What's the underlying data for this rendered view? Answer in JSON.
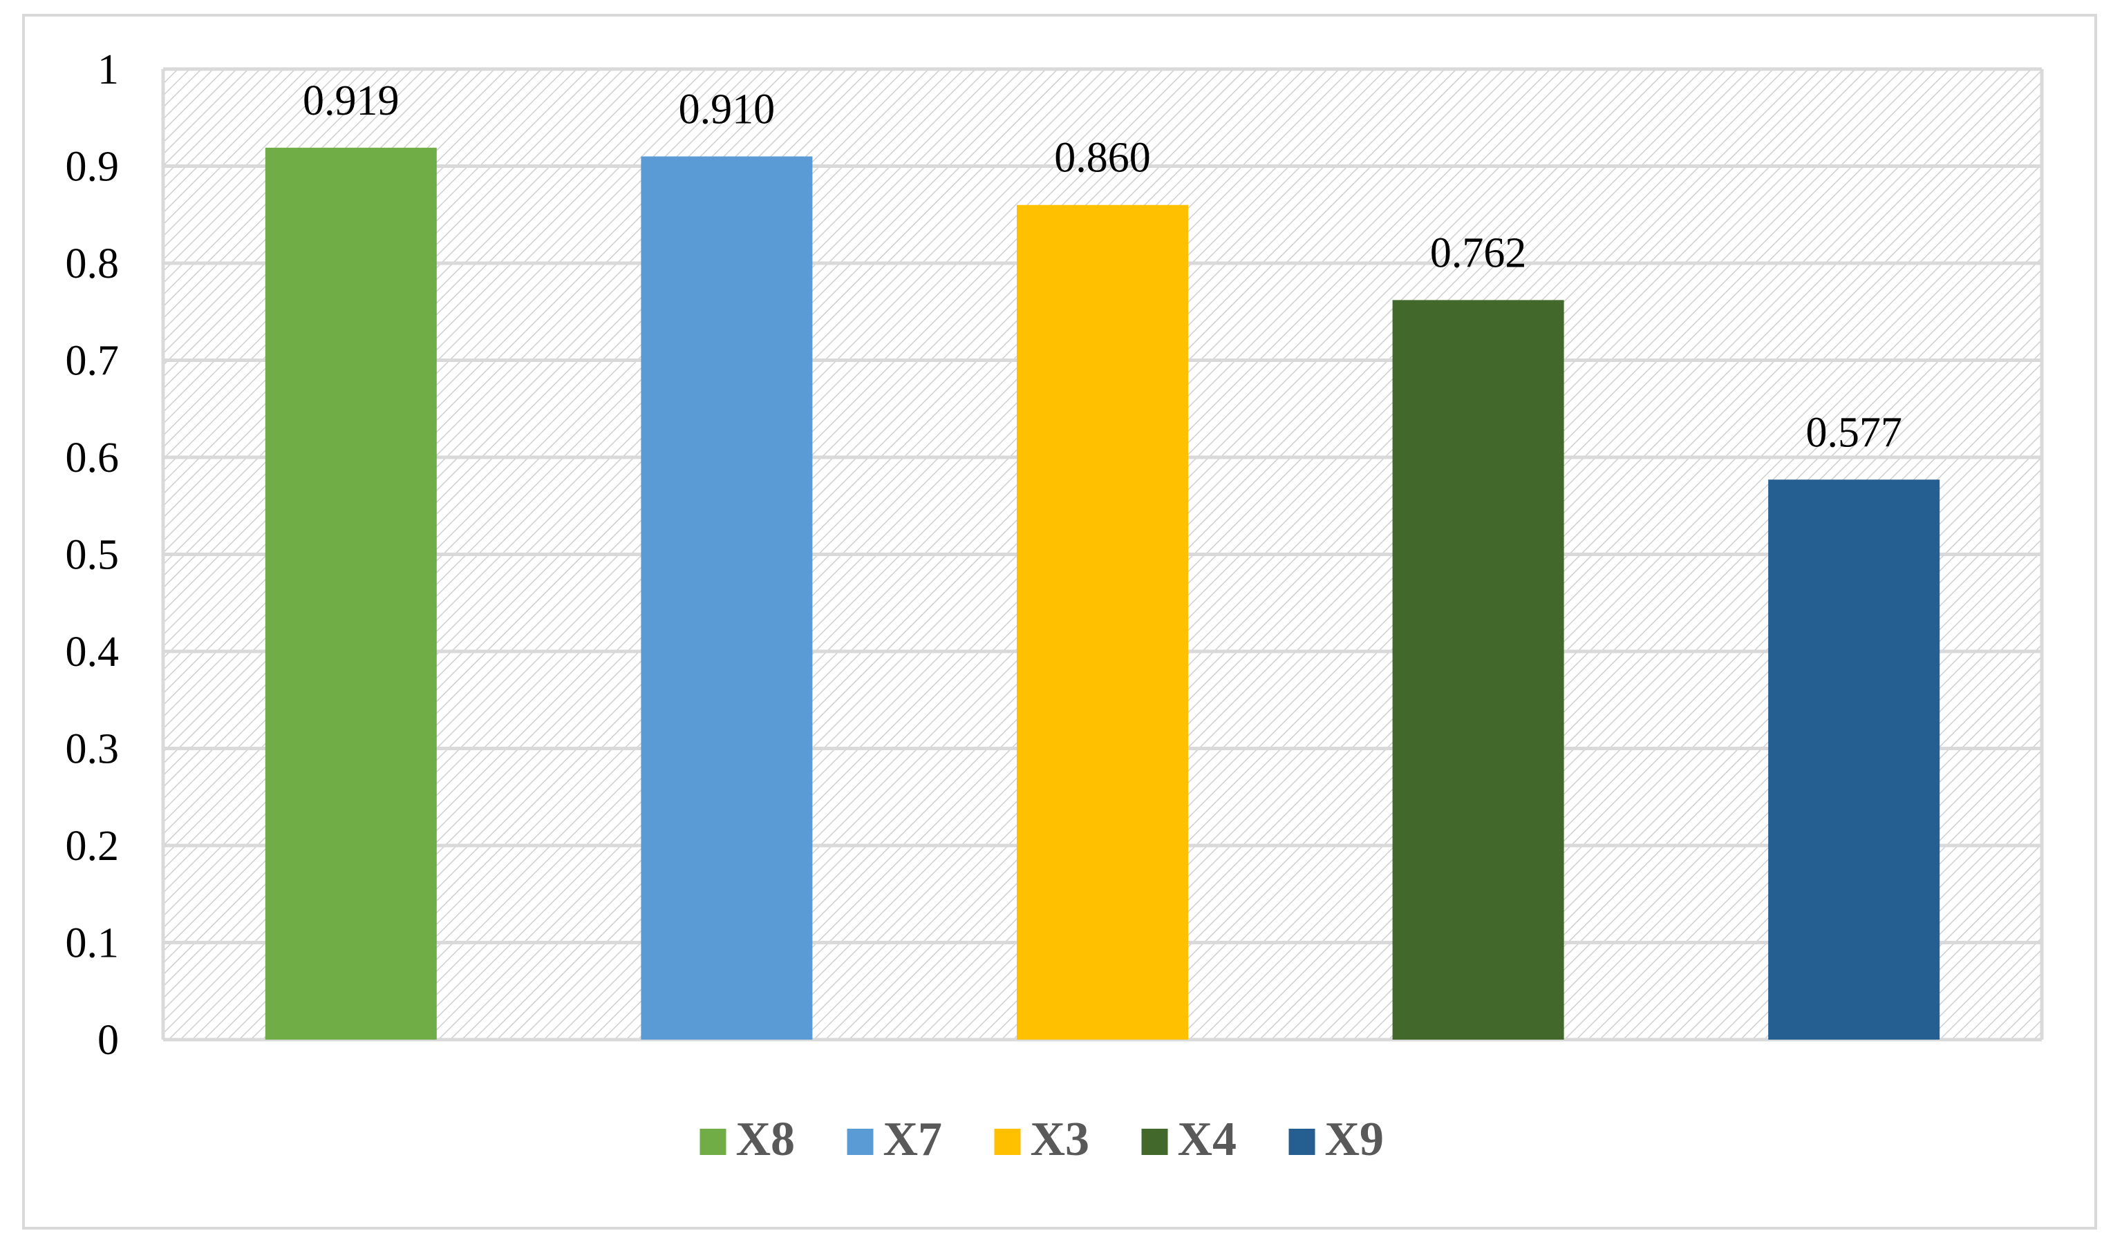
{
  "chart_data": {
    "type": "bar",
    "title": "",
    "xlabel": "",
    "ylabel": "",
    "categories": [
      "X8",
      "X7",
      "X3",
      "X4",
      "X9"
    ],
    "values": [
      0.919,
      0.91,
      0.86,
      0.762,
      0.577
    ],
    "value_labels": [
      "0.919",
      "0.910",
      "0.860",
      "0.762",
      "0.577"
    ],
    "colors": [
      "#70AD47",
      "#5B9BD5",
      "#FFC000",
      "#43682B",
      "#255E91"
    ],
    "ylim": [
      0,
      1
    ],
    "yticks": [
      0,
      0.1,
      0.2,
      0.3,
      0.4,
      0.5,
      0.6,
      0.7,
      0.8,
      0.9,
      1
    ],
    "ytick_labels": [
      "0",
      "0.1",
      "0.2",
      "0.3",
      "0.4",
      "0.5",
      "0.6",
      "0.7",
      "0.8",
      "0.9",
      "1"
    ],
    "grid": true,
    "plot_background": "diagonal-hatch",
    "legend": {
      "position": "bottom",
      "entries": [
        "X8",
        "X7",
        "X3",
        "X4",
        "X9"
      ]
    }
  }
}
